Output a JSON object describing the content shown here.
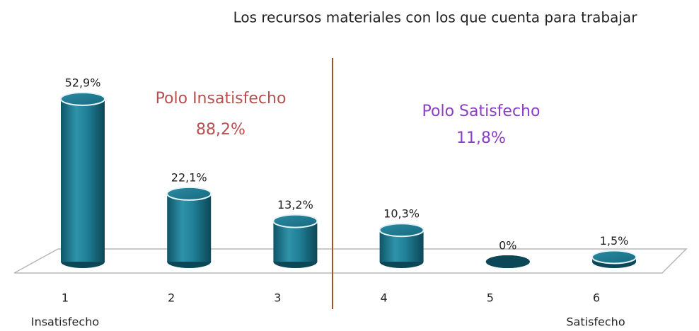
{
  "chart_data": {
    "type": "bar",
    "title": "Los recursos materiales con los que cuenta para trabajar",
    "categories": [
      "1",
      "2",
      "3",
      "4",
      "5",
      "6"
    ],
    "values": [
      52.9,
      22.1,
      13.2,
      10.3,
      0,
      1.5
    ],
    "value_labels": [
      "52,9%",
      "22,1%",
      "13,2%",
      "10,3%",
      "0%",
      "1,5%"
    ],
    "color": "#1f7f96",
    "end_labels": [
      "Insatisfecho",
      "Satisfecho"
    ],
    "annotations": [
      {
        "text": "Polo Insatisfecho",
        "color": "#b5504f"
      },
      {
        "text": "88,2%",
        "color": "#b5504f"
      },
      {
        "text": "Polo Satisfecho",
        "color": "#8b3fc4"
      },
      {
        "text": "11,8%",
        "color": "#8b3fc4"
      }
    ]
  }
}
